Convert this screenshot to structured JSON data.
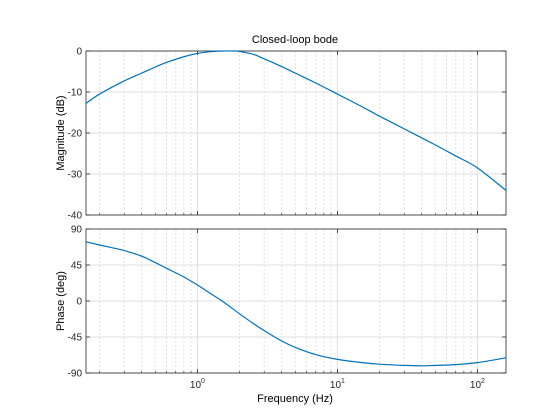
{
  "figure": {
    "title": "Closed-loop bode",
    "xlabel": "Frequency  (Hz)"
  },
  "colors": {
    "line": "#0072BD"
  },
  "chart_data": [
    {
      "type": "line",
      "title": "Closed-loop bode",
      "xlabel": "",
      "ylabel": "Magnitude (dB)",
      "xscale": "log",
      "xlim": [
        0.16,
        160
      ],
      "ylim": [
        -40,
        0
      ],
      "yticks": [
        0,
        -10,
        -20,
        -30,
        -40
      ],
      "ytick_labels": [
        "0",
        "-10",
        "-20",
        "-30",
        "-40"
      ],
      "grid": true,
      "series": [
        {
          "name": "magnitude",
          "x": [
            0.16,
            0.2,
            0.3,
            0.4,
            0.5,
            0.6,
            0.8,
            1.0,
            1.2,
            1.5,
            1.8,
            2.0,
            2.5,
            3,
            4,
            5,
            7,
            10,
            15,
            20,
            30,
            50,
            70,
            100,
            160
          ],
          "y": [
            -12.8,
            -10.5,
            -7.3,
            -5.4,
            -3.9,
            -2.8,
            -1.4,
            -0.6,
            -0.2,
            0.0,
            0.0,
            -0.1,
            -0.8,
            -1.9,
            -3.8,
            -5.4,
            -7.8,
            -10.5,
            -13.6,
            -15.9,
            -19.0,
            -22.9,
            -25.6,
            -28.5,
            -34.0
          ]
        }
      ]
    },
    {
      "type": "line",
      "title": "",
      "xlabel": "Frequency  (Hz)",
      "ylabel": "Phase (deg)",
      "xscale": "log",
      "xlim": [
        0.16,
        160
      ],
      "ylim": [
        -90,
        90
      ],
      "yticks": [
        90,
        45,
        0,
        -45,
        -90
      ],
      "ytick_labels": [
        "90",
        "45",
        "0",
        "-45",
        "-90"
      ],
      "xticks": [
        1,
        10,
        100
      ],
      "xtick_labels": [
        {
          "base": "10",
          "exp": "0"
        },
        {
          "base": "10",
          "exp": "1"
        },
        {
          "base": "10",
          "exp": "2"
        }
      ],
      "grid": true,
      "series": [
        {
          "name": "phase",
          "x": [
            0.16,
            0.2,
            0.3,
            0.4,
            0.5,
            0.6,
            0.8,
            1.0,
            1.2,
            1.5,
            2.0,
            2.5,
            3,
            4,
            5,
            7,
            10,
            15,
            20,
            30,
            40,
            50,
            70,
            100,
            160
          ],
          "y": [
            74,
            70,
            63,
            56,
            48,
            41,
            30,
            20,
            11,
            0,
            -16,
            -28,
            -37,
            -50,
            -58,
            -67,
            -73,
            -77,
            -79,
            -80.5,
            -81,
            -80.5,
            -79.5,
            -77,
            -71
          ]
        }
      ]
    }
  ]
}
